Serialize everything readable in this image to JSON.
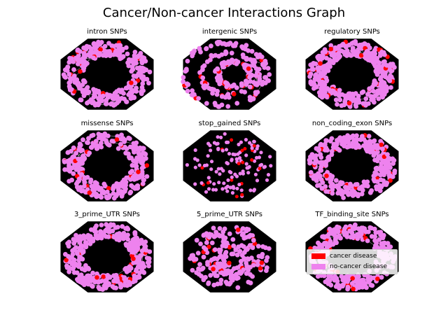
{
  "chart_data": {
    "type": "scatter",
    "title": "Cancer/Non-cancer Interactions Graph",
    "legend_placement": "inside TF_binding_site SNPs panel",
    "legend": [
      {
        "label": "cancer disease",
        "color": "#ff0000"
      },
      {
        "label": "no-cancer disease",
        "color": "#ee82ee"
      }
    ],
    "panels": [
      {
        "title": "intron SNPs",
        "layout": "ring",
        "nodes": 320,
        "cancer_fraction": 0.04
      },
      {
        "title": "intergenic SNPs",
        "layout": "loops",
        "nodes": 260,
        "cancer_fraction": 0.09
      },
      {
        "title": "regulatory SNPs",
        "layout": "ring",
        "nodes": 380,
        "cancer_fraction": 0.06
      },
      {
        "title": "missense SNPs",
        "layout": "ring",
        "nodes": 300,
        "cancer_fraction": 0.05
      },
      {
        "title": "stop_gained SNPs",
        "layout": "sparse",
        "nodes": 130,
        "cancer_fraction": 0.1
      },
      {
        "title": "non_coding_exon SNPs",
        "layout": "ring",
        "nodes": 340,
        "cancer_fraction": 0.06
      },
      {
        "title": "3_prime_UTR SNPs",
        "layout": "ring",
        "nodes": 340,
        "cancer_fraction": 0.06
      },
      {
        "title": "5_prime_UTR SNPs",
        "layout": "scattered",
        "nodes": 230,
        "cancer_fraction": 0.08
      },
      {
        "title": "TF_binding_site SNPs",
        "layout": "ring",
        "nodes": 300,
        "cancer_fraction": 0.06
      }
    ]
  }
}
